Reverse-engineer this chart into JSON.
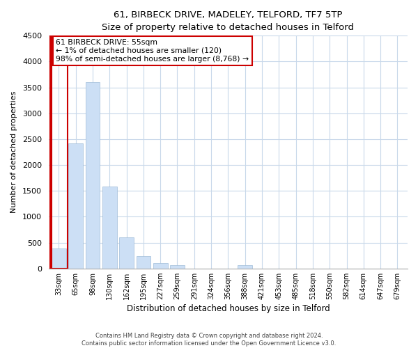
{
  "title": "61, BIRBECK DRIVE, MADELEY, TELFORD, TF7 5TP",
  "subtitle": "Size of property relative to detached houses in Telford",
  "xlabel": "Distribution of detached houses by size in Telford",
  "ylabel": "Number of detached properties",
  "categories": [
    "33sqm",
    "65sqm",
    "98sqm",
    "130sqm",
    "162sqm",
    "195sqm",
    "227sqm",
    "259sqm",
    "291sqm",
    "324sqm",
    "356sqm",
    "388sqm",
    "421sqm",
    "453sqm",
    "485sqm",
    "518sqm",
    "550sqm",
    "582sqm",
    "614sqm",
    "647sqm",
    "679sqm"
  ],
  "values": [
    380,
    2420,
    3600,
    1580,
    600,
    240,
    100,
    60,
    0,
    0,
    0,
    60,
    0,
    0,
    0,
    0,
    0,
    0,
    0,
    0,
    0
  ],
  "bar_color": "#ccdff5",
  "highlight_color": "#cc0000",
  "ylim": [
    0,
    4500
  ],
  "yticks": [
    0,
    500,
    1000,
    1500,
    2000,
    2500,
    3000,
    3500,
    4000,
    4500
  ],
  "annotation_title": "61 BIRBECK DRIVE: 55sqm",
  "annotation_line1": "← 1% of detached houses are smaller (120)",
  "annotation_line2": "98% of semi-detached houses are larger (8,768) →",
  "footnote1": "Contains HM Land Registry data © Crown copyright and database right 2024.",
  "footnote2": "Contains public sector information licensed under the Open Government Licence v3.0.",
  "bg_color": "#ffffff",
  "grid_color": "#c8d8ea",
  "annotation_box_color": "#ffffff",
  "annotation_box_edge": "#cc0000"
}
